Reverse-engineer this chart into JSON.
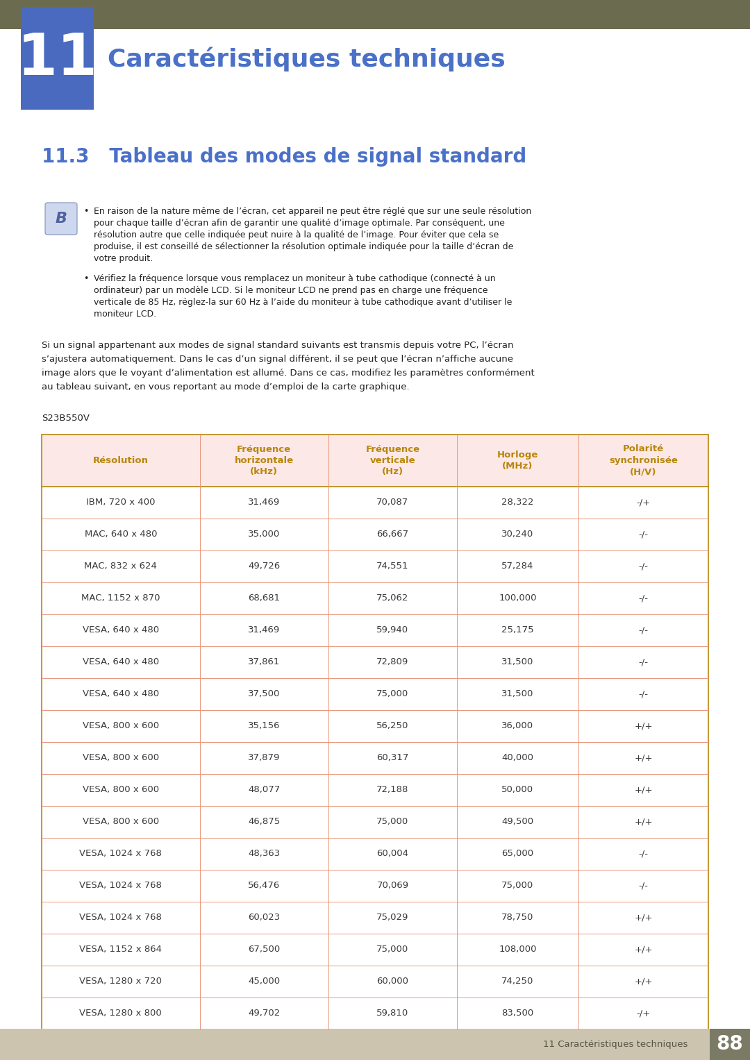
{
  "page_title": "Caractéristiques techniques",
  "chapter_num": "11",
  "section_title": "11.3   Tableau des modes de signal standard",
  "note1_lines": [
    "En raison de la nature même de l’écran, cet appareil ne peut être réglé que sur une seule résolution",
    "pour chaque taille d’écran afin de garantir une qualité d’image optimale. Par conséquent, une",
    "résolution autre que celle indiquée peut nuire à la qualité de l’image. Pour éviter que cela se",
    "produise, il est conseillé de sélectionner la résolution optimale indiquée pour la taille d’écran de",
    "votre produit."
  ],
  "note2_lines": [
    "Vérifiez la fréquence lorsque vous remplacez un moniteur à tube cathodique (connecté à un",
    "ordinateur) par un modèle LCD. Si le moniteur LCD ne prend pas en charge une fréquence",
    "verticale de 85 Hz, réglez-la sur 60 Hz à l’aide du moniteur à tube cathodique avant d’utiliser le",
    "moniteur LCD."
  ],
  "body_lines": [
    "Si un signal appartenant aux modes de signal standard suivants est transmis depuis votre PC, l’écran",
    "s’ajustera automatiquement. Dans le cas d’un signal différent, il se peut que l’écran n’affiche aucune",
    "image alors que le voyant d’alimentation est allumé. Dans ce cas, modifiez les paramètres conformément",
    "au tableau suivant, en vous reportant au mode d’emploi de la carte graphique."
  ],
  "model_label": "S23B550V",
  "table_headers": [
    "Résolution",
    "Fréquence\nhorizontale\n(kHz)",
    "Fréquence\nverticale\n(Hz)",
    "Horloge\n(MHz)",
    "Polarité\nsynchronisée\n(H/V)"
  ],
  "table_data": [
    [
      "IBM, 720 x 400",
      "31,469",
      "70,087",
      "28,322",
      "-/+"
    ],
    [
      "MAC, 640 x 480",
      "35,000",
      "66,667",
      "30,240",
      "-/-"
    ],
    [
      "MAC, 832 x 624",
      "49,726",
      "74,551",
      "57,284",
      "-/-"
    ],
    [
      "MAC, 1152 x 870",
      "68,681",
      "75,062",
      "100,000",
      "-/-"
    ],
    [
      "VESA, 640 x 480",
      "31,469",
      "59,940",
      "25,175",
      "-/-"
    ],
    [
      "VESA, 640 x 480",
      "37,861",
      "72,809",
      "31,500",
      "-/-"
    ],
    [
      "VESA, 640 x 480",
      "37,500",
      "75,000",
      "31,500",
      "-/-"
    ],
    [
      "VESA, 800 x 600",
      "35,156",
      "56,250",
      "36,000",
      "+/+"
    ],
    [
      "VESA, 800 x 600",
      "37,879",
      "60,317",
      "40,000",
      "+/+"
    ],
    [
      "VESA, 800 x 600",
      "48,077",
      "72,188",
      "50,000",
      "+/+"
    ],
    [
      "VESA, 800 x 600",
      "46,875",
      "75,000",
      "49,500",
      "+/+"
    ],
    [
      "VESA, 1024 x 768",
      "48,363",
      "60,004",
      "65,000",
      "-/-"
    ],
    [
      "VESA, 1024 x 768",
      "56,476",
      "70,069",
      "75,000",
      "-/-"
    ],
    [
      "VESA, 1024 x 768",
      "60,023",
      "75,029",
      "78,750",
      "+/+"
    ],
    [
      "VESA, 1152 x 864",
      "67,500",
      "75,000",
      "108,000",
      "+/+"
    ],
    [
      "VESA, 1280 x 720",
      "45,000",
      "60,000",
      "74,250",
      "+/+"
    ],
    [
      "VESA, 1280 x 800",
      "49,702",
      "59,810",
      "83,500",
      "-/+"
    ]
  ],
  "header_bg": "#fce8e6",
  "header_text_color": "#b8860b",
  "table_border_outer": "#b8860b",
  "table_border_inner_h": "#e8967a",
  "table_border_inner_v": "#e8967a",
  "data_text_color": "#3a3a3a",
  "bg_color": "#ffffff",
  "top_bar_color": "#6b6b50",
  "chapter_num_bg_top": "#7a9ad0",
  "chapter_num_bg_bot": "#4a6abf",
  "chapter_title_color": "#4a70c8",
  "section_title_color": "#4a70c8",
  "footer_bg": "#ccc4ae",
  "footer_text": "11 Caractéristiques techniques",
  "footer_page": "88",
  "footer_page_bg": "#7a7a65",
  "note_text_color": "#222222",
  "body_text_color": "#222222"
}
